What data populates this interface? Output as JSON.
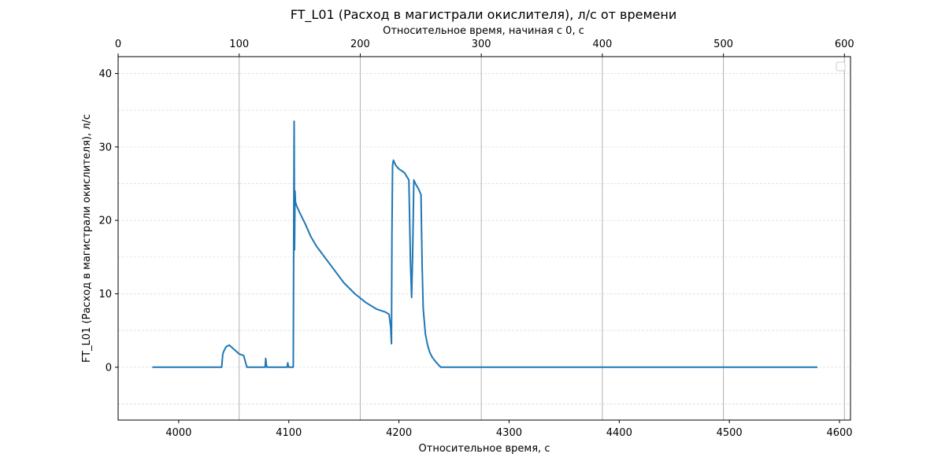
{
  "chart_data": {
    "type": "line",
    "title": "FT_L01 (Расход в магистрали окислителя), л/с от времени",
    "xlabel": "Относительное время, с",
    "ylabel": "FT_L01 (Расход в магистрали окислителя), л/с",
    "top_xlabel": "Относительное время, начиная с 0, с",
    "xlim": [
      3945,
      4610
    ],
    "ylim": [
      -7.2,
      42.3
    ],
    "top_xlim": [
      0,
      605
    ],
    "x_ticks": [
      4000,
      4100,
      4200,
      4300,
      4400,
      4500,
      4600
    ],
    "x_tick_labels": [
      "4000",
      "4100",
      "4200",
      "4300",
      "4400",
      "4500",
      "4600"
    ],
    "y_ticks": [
      0,
      10,
      20,
      30,
      40
    ],
    "y_tick_labels": [
      "0",
      "10",
      "20",
      "30",
      "40"
    ],
    "top_x_ticks": [
      0,
      100,
      200,
      300,
      400,
      500,
      600
    ],
    "top_x_tick_labels": [
      "0",
      "100",
      "200",
      "300",
      "400",
      "500",
      "600"
    ],
    "grid": "vertical solid at top-axis ticks, horizontal dashed every 5",
    "legend": "upper right (empty)",
    "line_color": "#1f77b4",
    "series": [
      {
        "x": [
          3976,
          4039,
          4040,
          4041,
          4043,
          4046,
          4049,
          4052,
          4055,
          4057,
          4059,
          4061,
          4062,
          4064,
          4078.5,
          4079,
          4079.5,
          4080,
          4098.5,
          4099,
          4099.5,
          4100,
          4104,
          4104.8,
          4105.2,
          4105.6,
          4106,
          4107,
          4110,
          4115,
          4120,
          4125,
          4130,
          4140,
          4150,
          4160,
          4170,
          4180,
          4188,
          4191,
          4192.5,
          4193.2,
          4193.6,
          4194.2,
          4195,
          4197,
          4200,
          4205,
          4209,
          4210.5,
          4211.5,
          4212.5,
          4213.5,
          4215,
          4218,
          4220,
          4221,
          4222,
          4224,
          4226,
          4228,
          4230,
          4233,
          4236,
          4238,
          4580
        ],
        "y": [
          0,
          0,
          1.8,
          2.2,
          2.8,
          3.0,
          2.6,
          2.2,
          1.8,
          1.7,
          1.6,
          0.5,
          0,
          0,
          0,
          1.2,
          0.5,
          0,
          0,
          0.6,
          0.2,
          0,
          0,
          33.5,
          16,
          24,
          22.5,
          22,
          21,
          19.5,
          17.8,
          16.5,
          15.5,
          13.5,
          11.5,
          10,
          8.8,
          7.9,
          7.5,
          7.2,
          5.5,
          3.2,
          18,
          27.5,
          28.2,
          27.5,
          27,
          26.5,
          25.5,
          14,
          9.5,
          16,
          25.5,
          25,
          24.2,
          23.5,
          14,
          8,
          4.5,
          3.0,
          2.0,
          1.4,
          0.8,
          0.3,
          0,
          0
        ]
      }
    ]
  }
}
